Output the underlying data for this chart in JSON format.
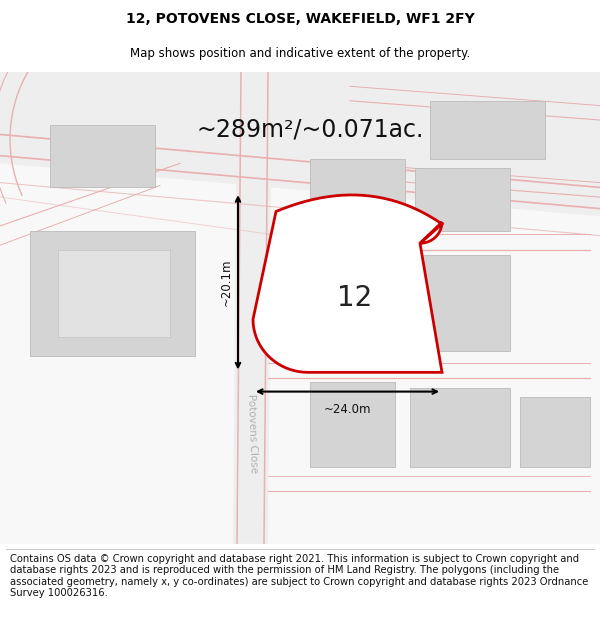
{
  "title_line1": "12, POTOVENS CLOSE, WAKEFIELD, WF1 2FY",
  "title_line2": "Map shows position and indicative extent of the property.",
  "area_text": "~289m²/~0.071ac.",
  "width_label": "~24.0m",
  "height_label": "~20.1m",
  "number_label": "12",
  "road_label": "Potovens Close",
  "footer_text": "Contains OS data © Crown copyright and database right 2021. This information is subject to Crown copyright and database rights 2023 and is reproduced with the permission of HM Land Registry. The polygons (including the associated geometry, namely x, y co-ordinates) are subject to Crown copyright and database rights 2023 Ordnance Survey 100026316.",
  "bg_color": "#ffffff",
  "map_bg_color": "#f2f2f2",
  "plot_border_color": "#cc0000",
  "building_color": "#d4d4d4",
  "building_edge_color": "#bbbbbb",
  "road_line_color": "#e8b0b0",
  "road_fill_color": "#f5e8e8",
  "title_fontsize": 10,
  "subtitle_fontsize": 8.5,
  "area_fontsize": 17,
  "label_fontsize": 8.5,
  "number_fontsize": 20,
  "road_label_fontsize": 7.5,
  "footer_fontsize": 7.2
}
